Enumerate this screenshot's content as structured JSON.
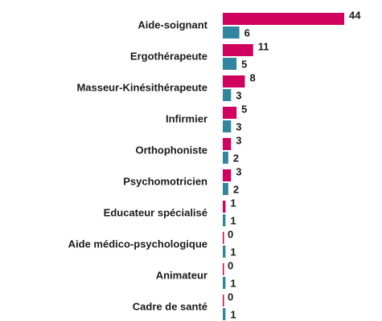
{
  "chart_data": {
    "type": "bar",
    "orientation": "horizontal",
    "categories": [
      "Aide-soignant",
      "Ergothérapeute",
      "Masseur-Kinésithérapeute",
      "Infirmier",
      "Orthophoniste",
      "Psychomotricien",
      "Educateur spécialisé",
      "Aide médico-psychologique",
      "Animateur",
      "Cadre de santé"
    ],
    "series": [
      {
        "color": "#d0005e",
        "values": [
          44,
          11,
          8,
          5,
          3,
          3,
          1,
          0,
          0,
          0
        ]
      },
      {
        "color": "#31859c",
        "values": [
          6,
          5,
          3,
          3,
          2,
          2,
          1,
          1,
          1,
          1
        ]
      }
    ]
  }
}
